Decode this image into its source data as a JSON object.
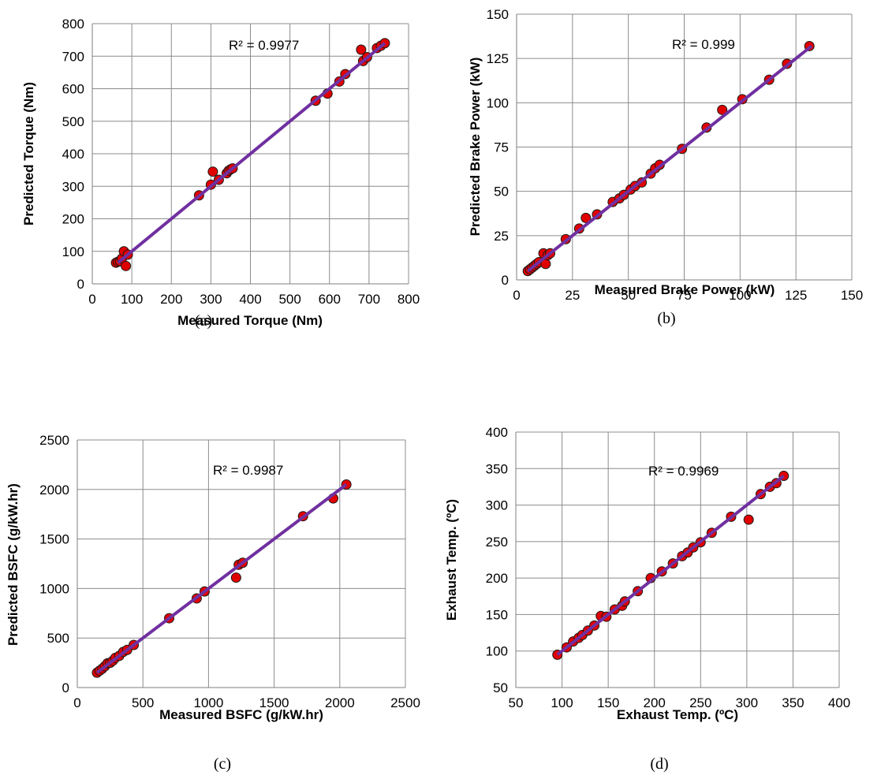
{
  "chart_data": [
    {
      "type": "scatter",
      "panel": "(a)",
      "xlabel": "Measured Torque (Nm)",
      "ylabel": "Predicted Torque (Nm)",
      "xlim": [
        0,
        800
      ],
      "ylim": [
        0,
        800
      ],
      "xticks": [
        0,
        100,
        200,
        300,
        400,
        500,
        600,
        700,
        800
      ],
      "yticks": [
        0,
        100,
        200,
        300,
        400,
        500,
        600,
        700,
        800
      ],
      "annotation": "R² = 0.9977",
      "trendline": [
        [
          65,
          65
        ],
        [
          740,
          740
        ]
      ],
      "grid": true,
      "points": [
        [
          60,
          65
        ],
        [
          65,
          68
        ],
        [
          70,
          70
        ],
        [
          75,
          78
        ],
        [
          80,
          100
        ],
        [
          85,
          55
        ],
        [
          90,
          90
        ],
        [
          270,
          272
        ],
        [
          300,
          305
        ],
        [
          305,
          345
        ],
        [
          320,
          320
        ],
        [
          340,
          340
        ],
        [
          345,
          348
        ],
        [
          350,
          352
        ],
        [
          355,
          355
        ],
        [
          565,
          563
        ],
        [
          595,
          585
        ],
        [
          625,
          622
        ],
        [
          640,
          645
        ],
        [
          680,
          720
        ],
        [
          685,
          685
        ],
        [
          695,
          697
        ],
        [
          720,
          725
        ],
        [
          730,
          732
        ],
        [
          740,
          740
        ]
      ]
    },
    {
      "type": "scatter",
      "panel": "(b)",
      "xlabel": "Measured Brake Power (kW)",
      "ylabel": "Predicted Brake Power (kW)",
      "xlim": [
        0,
        150
      ],
      "ylim": [
        0,
        150
      ],
      "xticks": [
        0,
        25,
        50,
        75,
        100,
        125,
        150
      ],
      "yticks": [
        0,
        25,
        50,
        75,
        100,
        125,
        150
      ],
      "annotation": "R² = 0.999",
      "trendline": [
        [
          5,
          5
        ],
        [
          132,
          132
        ]
      ],
      "grid": true,
      "points": [
        [
          5,
          5
        ],
        [
          6,
          6
        ],
        [
          7,
          7
        ],
        [
          8,
          8
        ],
        [
          9,
          9
        ],
        [
          10,
          10
        ],
        [
          12,
          15
        ],
        [
          13,
          9
        ],
        [
          14,
          14
        ],
        [
          15,
          15
        ],
        [
          22,
          23
        ],
        [
          28,
          29
        ],
        [
          31,
          35
        ],
        [
          36,
          37
        ],
        [
          43,
          44
        ],
        [
          46,
          46
        ],
        [
          48,
          48
        ],
        [
          51,
          51
        ],
        [
          53,
          53
        ],
        [
          56,
          55
        ],
        [
          60,
          60
        ],
        [
          62,
          63
        ],
        [
          64,
          65
        ],
        [
          74,
          74
        ],
        [
          85,
          86
        ],
        [
          92,
          96
        ],
        [
          101,
          102
        ],
        [
          113,
          113
        ],
        [
          121,
          122
        ],
        [
          131,
          132
        ]
      ]
    },
    {
      "type": "scatter",
      "panel": "(c)",
      "xlabel": "Measured BSFC (g/kW.hr)",
      "ylabel": "Predicted BSFC (g/kW.hr)",
      "xlim": [
        0,
        2500
      ],
      "ylim": [
        0,
        2500
      ],
      "xticks": [
        0,
        500,
        1000,
        1500,
        2000,
        2500
      ],
      "yticks": [
        0,
        500,
        1000,
        1500,
        2000,
        2500
      ],
      "annotation": "R² = 0.9987",
      "trendline": [
        [
          150,
          150
        ],
        [
          2050,
          2050
        ]
      ],
      "grid": true,
      "points": [
        [
          150,
          150
        ],
        [
          170,
          170
        ],
        [
          190,
          190
        ],
        [
          210,
          215
        ],
        [
          230,
          245
        ],
        [
          250,
          250
        ],
        [
          270,
          270
        ],
        [
          290,
          300
        ],
        [
          320,
          320
        ],
        [
          350,
          360
        ],
        [
          380,
          380
        ],
        [
          430,
          430
        ],
        [
          700,
          700
        ],
        [
          910,
          900
        ],
        [
          970,
          970
        ],
        [
          1210,
          1110
        ],
        [
          1230,
          1240
        ],
        [
          1260,
          1260
        ],
        [
          1720,
          1730
        ],
        [
          1950,
          1910
        ],
        [
          2050,
          2050
        ]
      ]
    },
    {
      "type": "scatter",
      "panel": "(d)",
      "xlabel": "Exhaust Temp. (ºC)",
      "ylabel": "Exhaust Temp. (ºC)",
      "xlim": [
        50,
        400
      ],
      "ylim": [
        50,
        400
      ],
      "xticks": [
        50,
        100,
        150,
        200,
        250,
        300,
        350,
        400
      ],
      "yticks": [
        50,
        100,
        150,
        200,
        250,
        300,
        350,
        400
      ],
      "annotation": "R² = 0.9969",
      "trendline": [
        [
          95,
          95
        ],
        [
          340,
          340
        ]
      ],
      "grid": true,
      "points": [
        [
          95,
          95
        ],
        [
          105,
          105
        ],
        [
          112,
          113
        ],
        [
          118,
          118
        ],
        [
          122,
          122
        ],
        [
          128,
          128
        ],
        [
          135,
          135
        ],
        [
          142,
          148
        ],
        [
          148,
          147
        ],
        [
          157,
          157
        ],
        [
          165,
          162
        ],
        [
          168,
          168
        ],
        [
          182,
          182
        ],
        [
          196,
          200
        ],
        [
          208,
          209
        ],
        [
          220,
          220
        ],
        [
          230,
          230
        ],
        [
          236,
          235
        ],
        [
          242,
          242
        ],
        [
          250,
          249
        ],
        [
          262,
          262
        ],
        [
          283,
          284
        ],
        [
          302,
          280
        ],
        [
          315,
          315
        ],
        [
          325,
          325
        ],
        [
          332,
          330
        ],
        [
          340,
          340
        ]
      ]
    }
  ]
}
